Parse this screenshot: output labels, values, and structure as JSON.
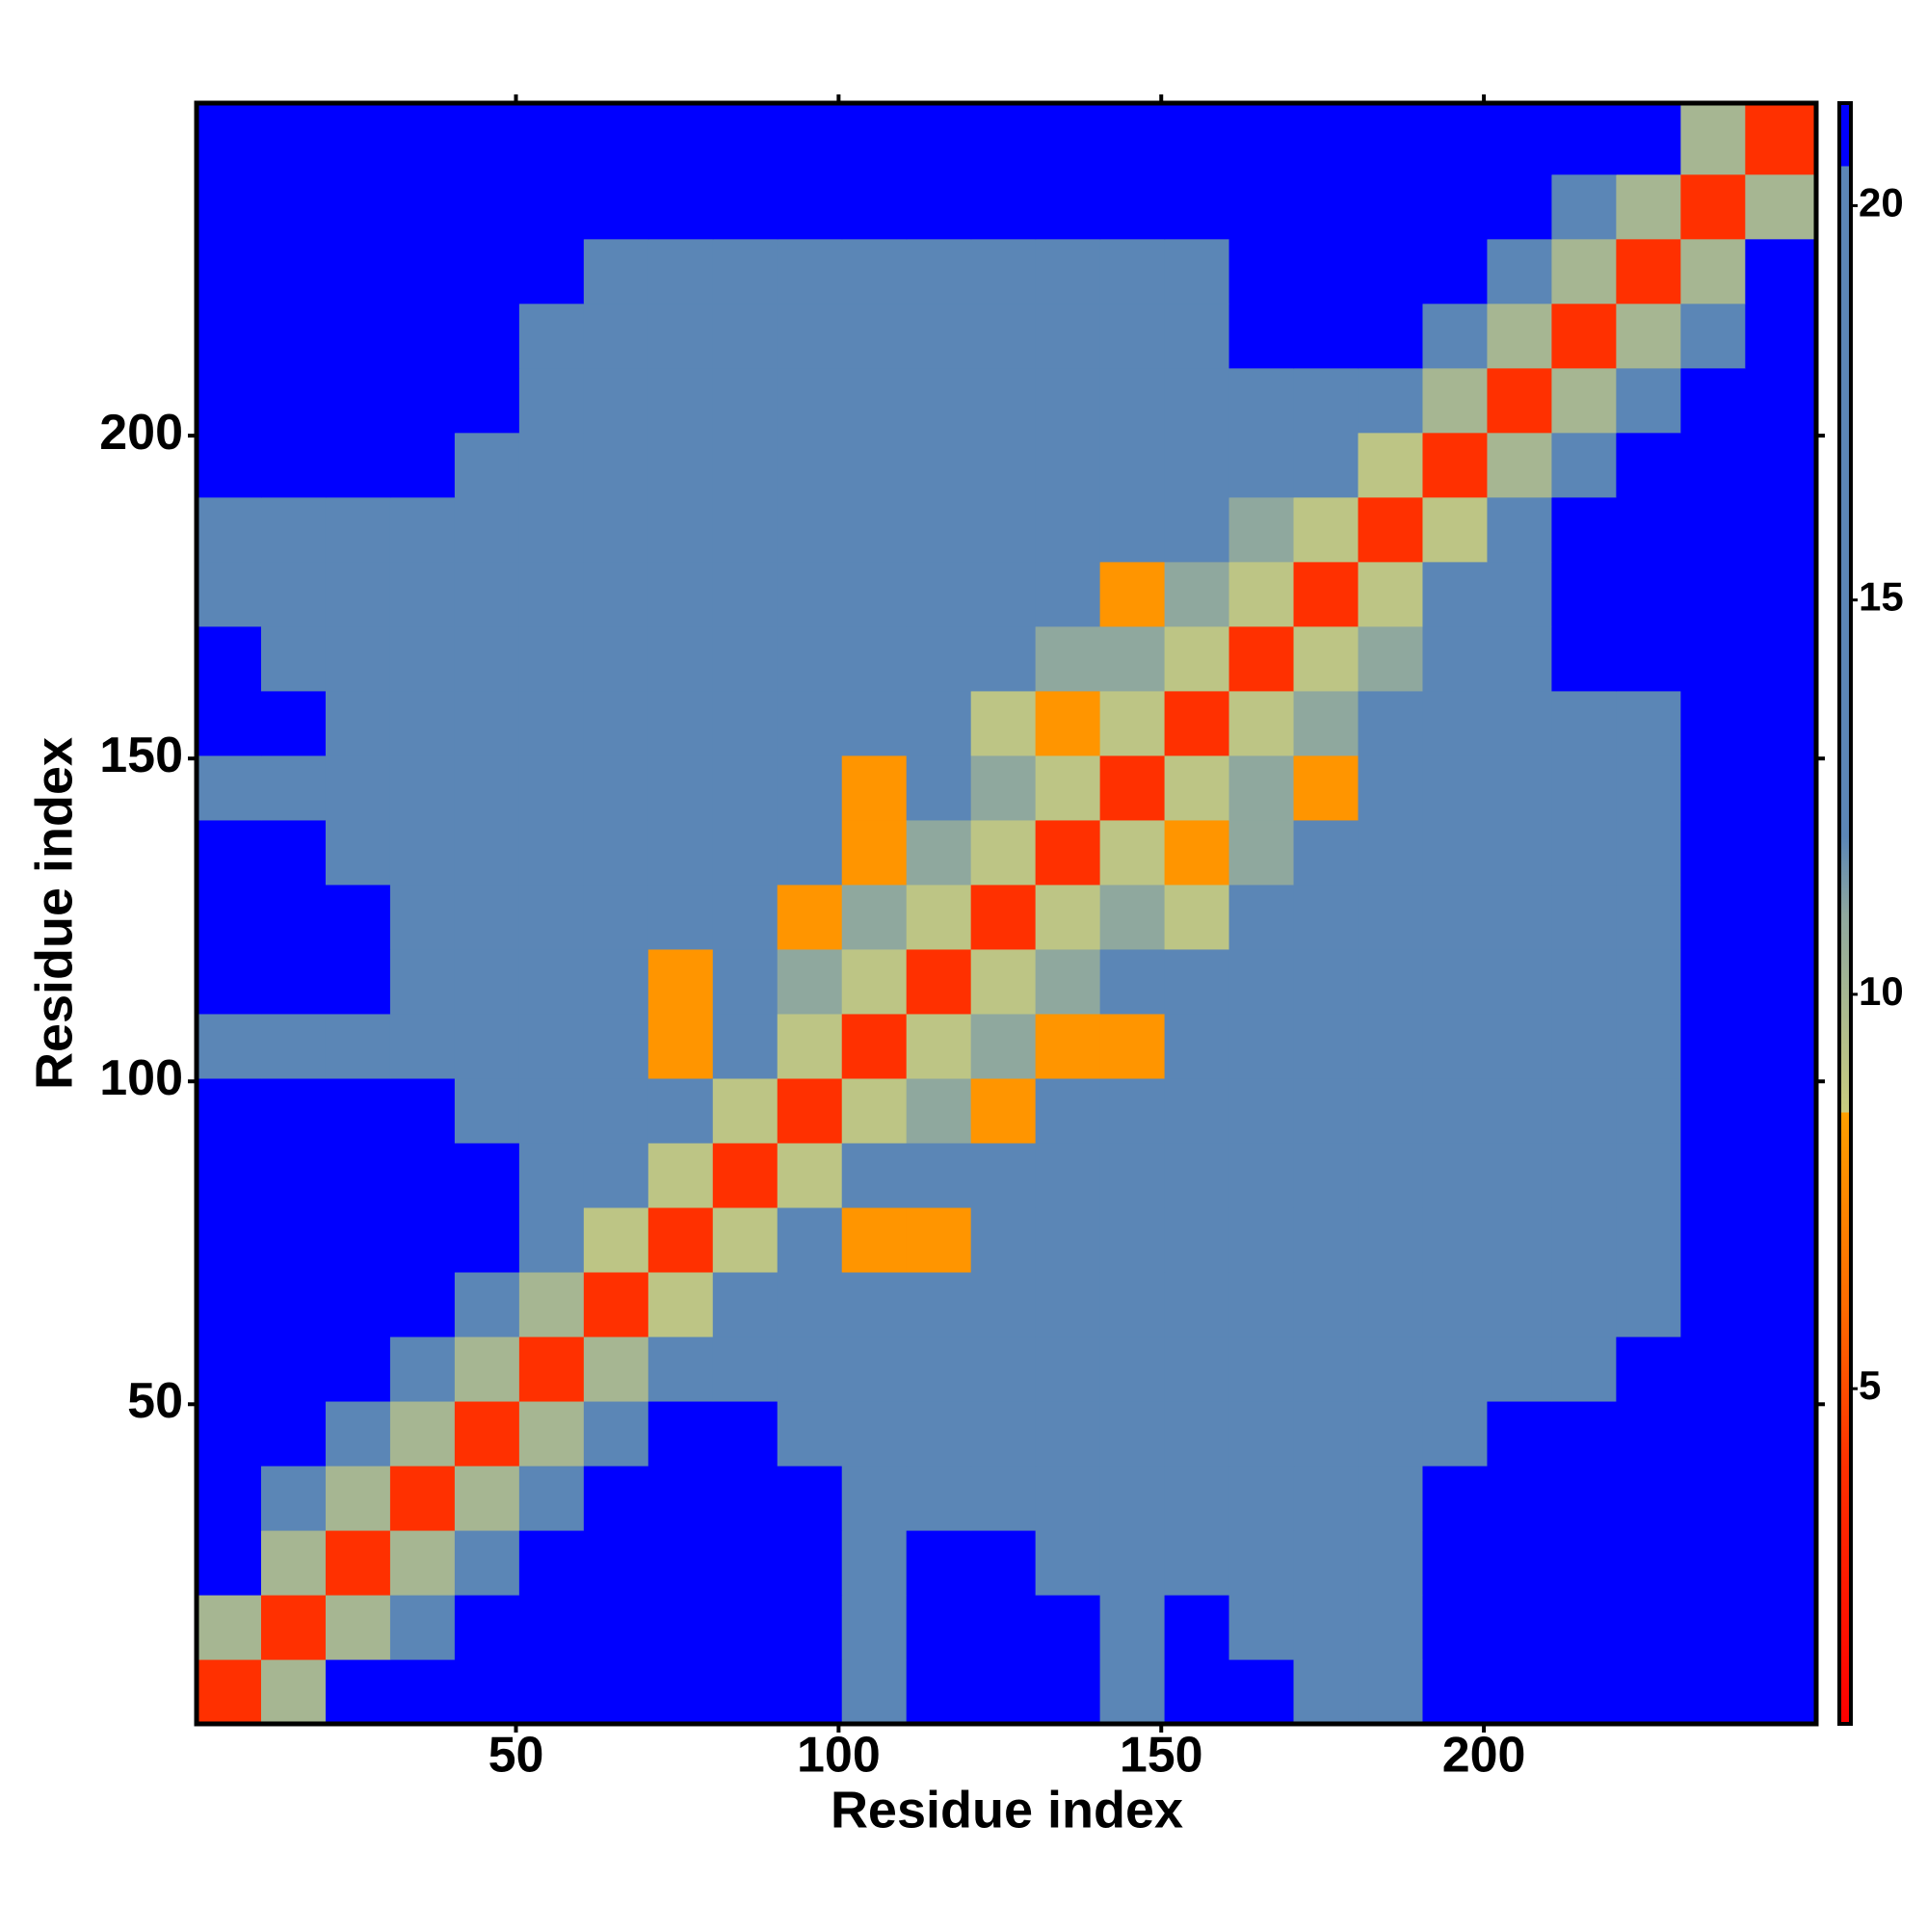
{
  "chart_data": {
    "type": "heatmap",
    "xlabel": "Residue index",
    "ylabel": "Residue index",
    "bins": [
      0.5,
      10.5,
      20.5,
      30.5,
      40.5,
      50.5,
      60.5,
      70.5,
      80.5,
      90.5,
      100.5,
      110.5,
      120.5,
      130.5,
      140.5,
      150.5,
      160.5,
      170.5,
      180.5,
      190.5,
      200.5,
      210.5,
      220.5,
      230.5,
      240.5,
      251.5
    ],
    "values": [
      [
        4,
        10,
        21,
        21,
        21,
        21,
        21,
        21,
        21,
        21,
        19,
        21,
        21,
        21,
        19,
        21,
        21,
        18,
        18,
        21,
        21,
        21,
        21,
        21,
        21
      ],
      [
        10,
        4,
        10,
        19,
        21,
        21,
        21,
        21,
        21,
        21,
        19,
        21,
        21,
        21,
        19,
        21,
        19,
        18,
        18,
        21,
        21,
        21,
        21,
        21,
        21
      ],
      [
        21,
        10,
        4,
        10,
        17,
        21,
        21,
        21,
        21,
        21,
        19,
        21,
        21,
        19,
        19,
        19,
        19,
        18,
        18,
        21,
        21,
        21,
        21,
        21,
        21
      ],
      [
        21,
        19,
        10,
        4,
        10,
        19,
        21,
        21,
        21,
        21,
        19,
        19,
        19,
        19,
        19,
        19,
        19,
        17,
        17,
        21,
        21,
        21,
        21,
        21,
        21
      ],
      [
        21,
        21,
        17,
        10,
        4,
        10,
        19,
        21,
        21,
        19,
        18,
        18,
        18,
        18,
        18,
        18,
        18,
        17,
        17,
        18,
        21,
        21,
        21,
        21,
        21
      ],
      [
        21,
        21,
        21,
        19,
        10,
        4,
        10,
        15,
        17,
        17,
        17,
        17,
        17,
        17,
        17,
        17,
        17,
        17,
        17,
        17,
        17,
        19,
        21,
        21,
        21
      ],
      [
        21,
        21,
        21,
        21,
        19,
        10,
        4,
        9,
        13,
        14,
        14,
        14,
        14,
        14,
        14,
        14,
        14,
        14,
        15,
        17,
        17,
        19,
        19,
        21,
        21
      ],
      [
        21,
        21,
        21,
        21,
        21,
        15,
        9,
        4,
        9,
        12,
        8,
        8,
        12,
        12,
        12,
        12,
        12,
        14,
        15,
        17,
        17,
        19,
        19,
        21,
        21
      ],
      [
        21,
        21,
        21,
        21,
        21,
        17,
        13,
        9,
        4,
        9,
        12,
        12,
        12,
        12,
        12,
        12,
        12,
        13,
        14,
        15,
        17,
        19,
        19,
        21,
        21
      ],
      [
        21,
        21,
        21,
        21,
        19,
        17,
        14,
        12,
        9,
        4,
        9,
        11,
        8,
        12,
        12,
        12,
        12,
        13,
        14,
        15,
        17,
        19,
        19,
        21,
        21
      ],
      [
        19,
        19,
        19,
        19,
        18,
        17,
        14,
        8,
        12,
        9,
        4,
        9,
        11,
        8,
        8,
        12,
        12,
        13,
        14,
        15,
        17,
        19,
        19,
        21,
        21
      ],
      [
        21,
        21,
        21,
        19,
        18,
        17,
        14,
        8,
        12,
        11,
        9,
        4,
        9,
        11,
        12,
        12,
        12,
        13,
        14,
        15,
        17,
        19,
        19,
        21,
        21
      ],
      [
        21,
        21,
        21,
        19,
        18,
        17,
        14,
        12,
        12,
        8,
        11,
        9,
        4,
        9,
        11,
        9,
        12,
        13,
        14,
        15,
        17,
        19,
        19,
        21,
        21
      ],
      [
        21,
        21,
        19,
        19,
        18,
        17,
        14,
        12,
        12,
        12,
        8,
        11,
        9,
        4,
        9,
        8,
        11,
        12,
        13,
        15,
        17,
        19,
        19,
        21,
        21
      ],
      [
        19,
        19,
        19,
        19,
        18,
        17,
        14,
        12,
        12,
        12,
        8,
        12,
        11,
        9,
        4,
        9,
        11,
        8,
        12,
        15,
        17,
        19,
        19,
        21,
        21
      ],
      [
        21,
        21,
        19,
        19,
        18,
        17,
        14,
        12,
        12,
        12,
        12,
        12,
        9,
        8,
        9,
        4,
        9,
        11,
        12,
        14,
        17,
        19,
        19,
        21,
        21
      ],
      [
        21,
        19,
        19,
        19,
        18,
        17,
        14,
        12,
        12,
        12,
        12,
        12,
        12,
        11,
        11,
        9,
        4,
        9,
        11,
        13,
        19,
        21,
        21,
        21,
        21
      ],
      [
        18,
        18,
        18,
        17,
        17,
        17,
        14,
        14,
        13,
        13,
        13,
        13,
        13,
        12,
        8,
        11,
        9,
        4,
        9,
        12,
        19,
        21,
        21,
        21,
        21
      ],
      [
        18,
        18,
        18,
        17,
        17,
        17,
        15,
        15,
        14,
        14,
        14,
        14,
        14,
        13,
        12,
        12,
        11,
        9,
        4,
        9,
        17,
        21,
        21,
        21,
        21
      ],
      [
        21,
        21,
        21,
        21,
        18,
        17,
        17,
        17,
        15,
        15,
        15,
        15,
        15,
        15,
        15,
        14,
        13,
        12,
        9,
        4,
        10,
        19,
        21,
        21,
        21
      ],
      [
        21,
        21,
        21,
        21,
        21,
        17,
        17,
        17,
        17,
        17,
        17,
        17,
        17,
        17,
        17,
        17,
        19,
        19,
        17,
        10,
        4,
        10,
        17,
        21,
        21
      ],
      [
        21,
        21,
        21,
        21,
        21,
        19,
        19,
        19,
        19,
        19,
        19,
        19,
        19,
        19,
        19,
        19,
        21,
        21,
        21,
        19,
        10,
        4,
        10,
        17,
        21
      ],
      [
        21,
        21,
        21,
        21,
        21,
        21,
        19,
        19,
        19,
        19,
        19,
        19,
        19,
        19,
        19,
        19,
        21,
        21,
        21,
        21,
        17,
        10,
        4,
        10,
        21
      ],
      [
        21,
        21,
        21,
        21,
        21,
        21,
        21,
        21,
        21,
        21,
        21,
        21,
        21,
        21,
        21,
        21,
        21,
        21,
        21,
        21,
        21,
        17,
        10,
        4,
        10
      ],
      [
        21,
        21,
        21,
        21,
        21,
        21,
        21,
        21,
        21,
        21,
        21,
        21,
        21,
        21,
        21,
        21,
        21,
        21,
        21,
        21,
        21,
        21,
        21,
        10,
        4
      ]
    ],
    "xlim": [
      0.5,
      251.5
    ],
    "ylim": [
      0.5,
      251.5
    ],
    "xticks": [
      50,
      100,
      150,
      200
    ],
    "yticks": [
      50,
      100,
      150,
      200
    ],
    "clim": [
      0.75,
      21.3
    ],
    "cticks": [
      5,
      10,
      15,
      20
    ],
    "colorscale": [
      [
        0.75,
        "#ff0000"
      ],
      [
        4,
        "#ff3000"
      ],
      [
        6,
        "#ff6a00"
      ],
      [
        8.5,
        "#ffa000"
      ],
      [
        8.5,
        "#c9cc7f"
      ],
      [
        11,
        "#8fa89e"
      ],
      [
        12,
        "#5b86b6"
      ],
      [
        20.5,
        "#5b86b6"
      ],
      [
        20.5,
        "#0000ff"
      ],
      [
        21.3,
        "#0000ff"
      ]
    ]
  }
}
